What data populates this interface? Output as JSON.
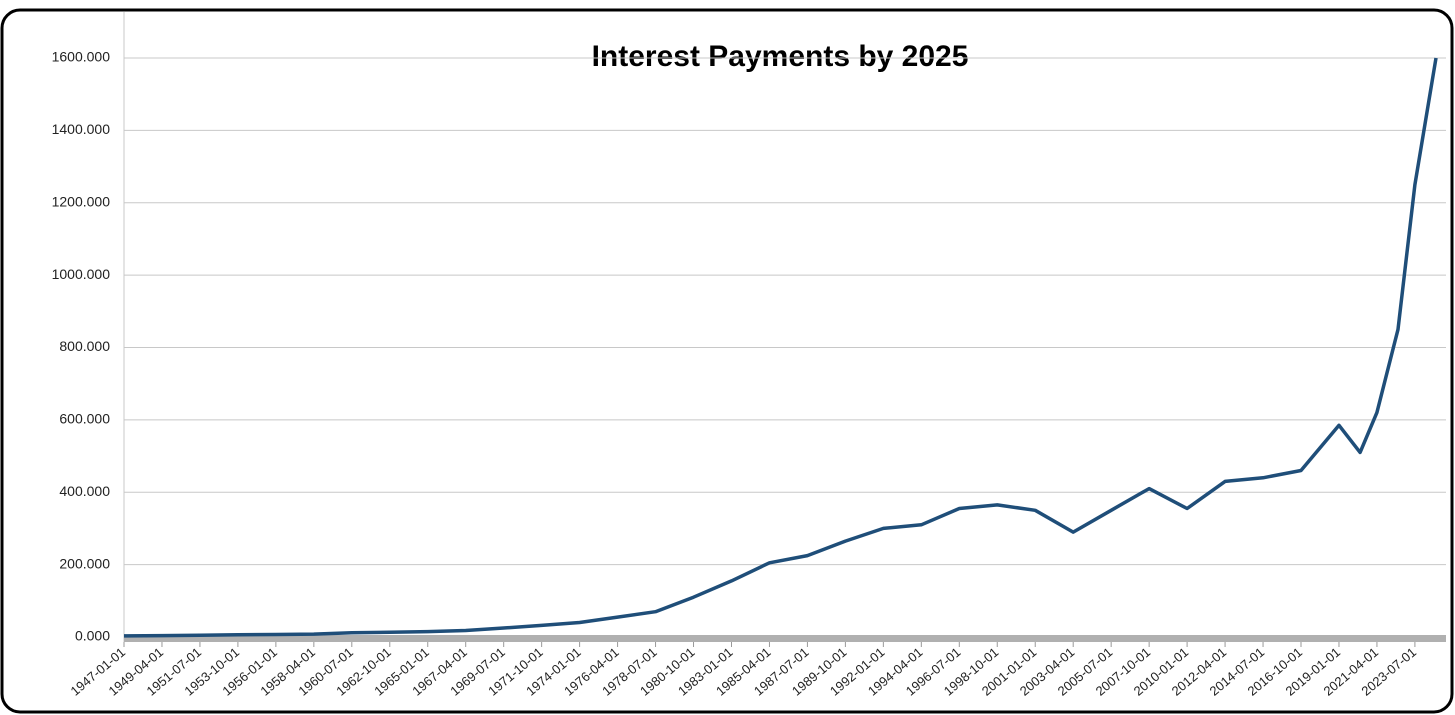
{
  "chart_data": {
    "type": "line",
    "title": "Interest Payments by 2025",
    "x": [
      "1947-01-01",
      "1949-04-01",
      "1951-07-01",
      "1953-10-01",
      "1956-01-01",
      "1958-04-01",
      "1960-07-01",
      "1962-10-01",
      "1965-01-01",
      "1967-04-01",
      "1969-07-01",
      "1971-10-01",
      "1974-01-01",
      "1976-04-01",
      "1978-07-01",
      "1980-10-01",
      "1983-01-01",
      "1985-04-01",
      "1987-07-01",
      "1989-10-01",
      "1992-01-01",
      "1994-04-01",
      "1996-07-01",
      "1998-10-01",
      "2001-01-01",
      "2003-04-01",
      "2005-07-01",
      "2007-10-01",
      "2010-01-01",
      "2012-04-01",
      "2014-07-01",
      "2016-10-01",
      "2019-01-01",
      "2020-04-01",
      "2021-04-01",
      "2022-07-01",
      "2023-07-01",
      "2024-10-01"
    ],
    "series": [
      {
        "color": "#1f4e79",
        "values": [
          3,
          4,
          5,
          6,
          7,
          8,
          12,
          13,
          15,
          18,
          25,
          32,
          40,
          55,
          70,
          110,
          155,
          205,
          225,
          265,
          300,
          310,
          355,
          365,
          350,
          290,
          350,
          410,
          355,
          430,
          440,
          460,
          585,
          510,
          620,
          850,
          1250,
          1600
        ]
      }
    ],
    "xlim": [
      "1947-01-01",
      "2024-10-01"
    ],
    "xticks": [
      "1947-01-01",
      "1949-04-01",
      "1951-07-01",
      "1953-10-01",
      "1956-01-01",
      "1958-04-01",
      "1960-07-01",
      "1962-10-01",
      "1965-01-01",
      "1967-04-01",
      "1969-07-01",
      "1971-10-01",
      "1974-01-01",
      "1976-04-01",
      "1978-07-01",
      "1980-10-01",
      "1983-01-01",
      "1985-04-01",
      "1987-07-01",
      "1989-10-01",
      "1992-01-01",
      "1994-04-01",
      "1996-07-01",
      "1998-10-01",
      "2001-01-01",
      "2003-04-01",
      "2005-07-01",
      "2007-10-01",
      "2010-01-01",
      "2012-04-01",
      "2014-07-01",
      "2016-10-01",
      "2019-01-01",
      "2021-04-01",
      "2023-07-01"
    ],
    "ylim": [
      0,
      1600
    ],
    "yticks": [
      {
        "value": 0,
        "label": "0.000"
      },
      {
        "value": 200,
        "label": "200.000"
      },
      {
        "value": 400,
        "label": "400.000"
      },
      {
        "value": 600,
        "label": "600.000"
      },
      {
        "value": 800,
        "label": "800.000"
      },
      {
        "value": 1000,
        "label": "1000.000"
      },
      {
        "value": 1200,
        "label": "1200.000"
      },
      {
        "value": 1400,
        "label": "1400.000"
      },
      {
        "value": 1600,
        "label": "1600.000"
      }
    ],
    "grid": true
  }
}
